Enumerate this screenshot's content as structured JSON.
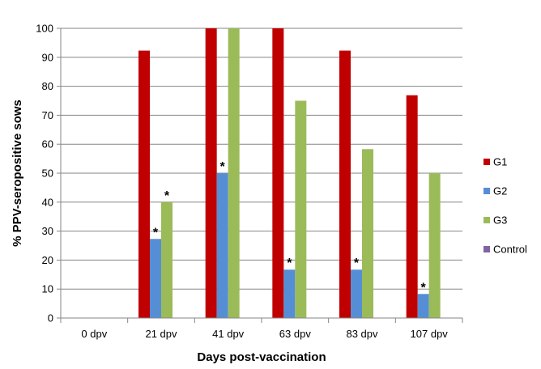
{
  "chart_data": {
    "type": "bar",
    "title": "",
    "xlabel": "Days post-vaccination",
    "ylabel": "% PPV-seropositive sows",
    "ylim": [
      0,
      100
    ],
    "yticks": [
      0,
      10,
      20,
      30,
      40,
      50,
      60,
      70,
      80,
      90,
      100
    ],
    "categories": [
      "0 dpv",
      "21 dpv",
      "41 dpv",
      "63 dpv",
      "83 dpv",
      "107 dpv"
    ],
    "grid": true,
    "legend_position": "right",
    "series": [
      {
        "name": "G1",
        "color": "#c00000",
        "values": [
          0,
          92.3,
          100,
          100,
          92.3,
          76.9
        ]
      },
      {
        "name": "G2",
        "color": "#558ed5",
        "values": [
          0,
          27.3,
          50,
          16.7,
          16.7,
          8.3
        ]
      },
      {
        "name": "G3",
        "color": "#9bbb59",
        "values": [
          0,
          40,
          100,
          75,
          58.3,
          50
        ]
      },
      {
        "name": "Control",
        "color": "#8064a2",
        "values": [
          0,
          0,
          0,
          0,
          0,
          0
        ]
      }
    ],
    "annotations": [
      {
        "series": "G2",
        "category": "21 dpv",
        "text": "*"
      },
      {
        "series": "G3",
        "category": "21 dpv",
        "text": "*"
      },
      {
        "series": "G2",
        "category": "41 dpv",
        "text": "*"
      },
      {
        "series": "G2",
        "category": "63 dpv",
        "text": "*"
      },
      {
        "series": "G2",
        "category": "83 dpv",
        "text": "*"
      },
      {
        "series": "G2",
        "category": "107 dpv",
        "text": "*"
      }
    ]
  }
}
